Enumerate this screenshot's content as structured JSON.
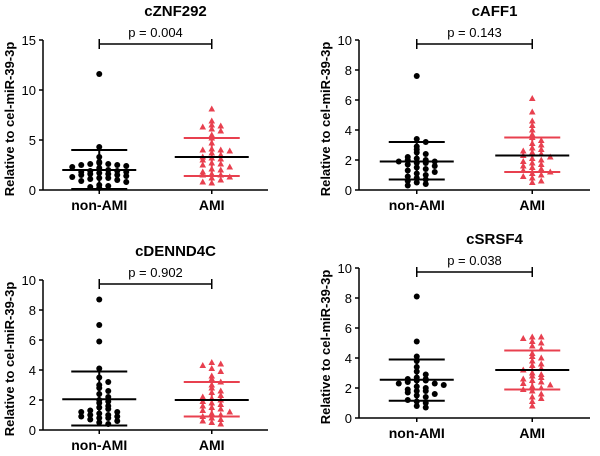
{
  "chart_data": [
    {
      "type": "scatter",
      "title": "cZNF292",
      "ylabel": "Relative to cel-miR-39-3p",
      "categories": [
        "non-AMI",
        "AMI"
      ],
      "ylim": [
        0,
        15
      ],
      "yticks": [
        "0",
        "5",
        "10",
        "15"
      ],
      "p_label": "p = 0.004",
      "series": [
        {
          "name": "non-AMI",
          "color": "#000000",
          "marker": "circle",
          "mean": 2.0,
          "sd_upper": 4.0,
          "sd_lower": 0.1,
          "values": [
            11.6,
            4.3,
            3.3,
            2.8,
            2.7,
            2.6,
            2.6,
            2.5,
            2.5,
            2.4,
            2.3,
            2.2,
            2.0,
            1.9,
            1.9,
            1.8,
            1.8,
            1.7,
            1.6,
            1.6,
            1.5,
            1.5,
            1.4,
            1.3,
            1.2,
            1.2,
            1.1,
            1.0,
            0.9,
            0.8,
            0.5,
            0.4,
            0.3,
            0.2
          ]
        },
        {
          "name": "AMI",
          "color": "#e8404f",
          "marker": "triangle",
          "mean": 3.3,
          "sd_upper": 5.2,
          "sd_lower": 1.4,
          "values": [
            8.1,
            6.9,
            6.5,
            6.4,
            6.3,
            6.1,
            5.9,
            5.5,
            5.2,
            4.7,
            4.1,
            4.0,
            4.0,
            3.9,
            3.7,
            3.5,
            3.3,
            3.2,
            3.1,
            3.0,
            2.7,
            2.6,
            2.5,
            2.3,
            2.1,
            2.0,
            1.8,
            1.6,
            1.5,
            1.5,
            1.3,
            1.2,
            1.0,
            0.8,
            0.7
          ]
        }
      ]
    },
    {
      "type": "scatter",
      "title": "cAFF1",
      "ylabel": "Relative to cel-miR-39-3p",
      "categories": [
        "non-AMI",
        "AMI"
      ],
      "ylim": [
        0,
        10
      ],
      "yticks": [
        "0",
        "2",
        "4",
        "6",
        "8",
        "10"
      ],
      "p_label": "p = 0.143",
      "series": [
        {
          "name": "non-AMI",
          "color": "#000000",
          "marker": "circle",
          "mean": 1.9,
          "sd_upper": 3.2,
          "sd_lower": 0.7,
          "values": [
            7.6,
            3.4,
            3.2,
            2.9,
            2.7,
            2.5,
            2.4,
            2.2,
            2.1,
            2.0,
            2.0,
            1.9,
            1.9,
            1.8,
            1.8,
            1.7,
            1.6,
            1.5,
            1.4,
            1.3,
            1.2,
            1.1,
            1.0,
            0.9,
            0.8,
            0.7,
            0.6,
            0.5,
            0.4,
            0.3
          ]
        },
        {
          "name": "AMI",
          "color": "#e8404f",
          "marker": "triangle",
          "mean": 2.3,
          "sd_upper": 3.5,
          "sd_lower": 1.2,
          "values": [
            6.1,
            5.2,
            4.6,
            4.3,
            4.0,
            3.7,
            3.5,
            3.3,
            3.1,
            3.0,
            2.8,
            2.7,
            2.6,
            2.5,
            2.4,
            2.3,
            2.2,
            2.1,
            2.0,
            1.9,
            1.8,
            1.7,
            1.6,
            1.5,
            1.4,
            1.3,
            1.2,
            1.1,
            1.0,
            0.9,
            0.8,
            0.6,
            0.5
          ]
        }
      ]
    },
    {
      "type": "scatter",
      "title": "cDENND4C",
      "ylabel": "Relative to cel-miR-39-3p",
      "categories": [
        "non-AMI",
        "AMI"
      ],
      "ylim": [
        0,
        10
      ],
      "yticks": [
        "0",
        "2",
        "4",
        "6",
        "8",
        "10"
      ],
      "p_label": "p = 0.902",
      "series": [
        {
          "name": "non-AMI",
          "color": "#000000",
          "marker": "circle",
          "mean": 2.05,
          "sd_upper": 3.9,
          "sd_lower": 0.3,
          "values": [
            8.7,
            7.0,
            5.9,
            4.1,
            3.5,
            3.2,
            3.0,
            2.8,
            2.6,
            2.4,
            2.2,
            2.0,
            1.9,
            1.8,
            1.6,
            1.5,
            1.4,
            1.3,
            1.2,
            1.2,
            1.1,
            1.0,
            1.0,
            0.9,
            0.9,
            0.8,
            0.8,
            0.7,
            0.6,
            0.5,
            0.4
          ]
        },
        {
          "name": "AMI",
          "color": "#e8404f",
          "marker": "triangle",
          "mean": 2.0,
          "sd_upper": 3.2,
          "sd_lower": 0.9,
          "values": [
            4.5,
            4.4,
            4.3,
            4.1,
            3.9,
            3.6,
            3.4,
            3.2,
            3.0,
            2.8,
            2.6,
            2.5,
            2.3,
            2.2,
            2.1,
            2.0,
            1.9,
            1.8,
            1.7,
            1.6,
            1.5,
            1.4,
            1.3,
            1.2,
            1.1,
            1.0,
            0.9,
            0.8,
            0.7,
            0.6,
            0.5,
            0.4
          ]
        }
      ]
    },
    {
      "type": "scatter",
      "title": "cSRSF4",
      "ylabel": "Relative to cel-miR-39-3p",
      "categories": [
        "non-AMI",
        "AMI"
      ],
      "ylim": [
        0,
        10
      ],
      "yticks": [
        "0",
        "2",
        "4",
        "6",
        "8",
        "10"
      ],
      "p_label": "p = 0.038",
      "series": [
        {
          "name": "non-AMI",
          "color": "#000000",
          "marker": "circle",
          "mean": 2.55,
          "sd_upper": 3.9,
          "sd_lower": 1.15,
          "values": [
            8.1,
            5.1,
            4.1,
            3.8,
            3.4,
            3.1,
            2.9,
            2.7,
            2.6,
            2.6,
            2.5,
            2.5,
            2.4,
            2.3,
            2.3,
            2.2,
            2.1,
            2.0,
            1.9,
            1.8,
            1.8,
            1.7,
            1.6,
            1.5,
            1.4,
            1.2,
            1.1,
            1.0,
            0.8,
            0.7
          ]
        },
        {
          "name": "AMI",
          "color": "#e8404f",
          "marker": "triangle",
          "mean": 3.2,
          "sd_upper": 4.5,
          "sd_lower": 1.9,
          "values": [
            5.4,
            5.4,
            5.3,
            5.1,
            5.0,
            4.8,
            4.6,
            4.3,
            4.1,
            4.0,
            3.8,
            3.6,
            3.5,
            3.3,
            3.2,
            3.0,
            2.9,
            2.8,
            2.7,
            2.6,
            2.5,
            2.4,
            2.3,
            2.2,
            2.1,
            2.0,
            1.9,
            1.8,
            1.6,
            1.4,
            1.3,
            1.1,
            0.8
          ]
        }
      ]
    }
  ]
}
